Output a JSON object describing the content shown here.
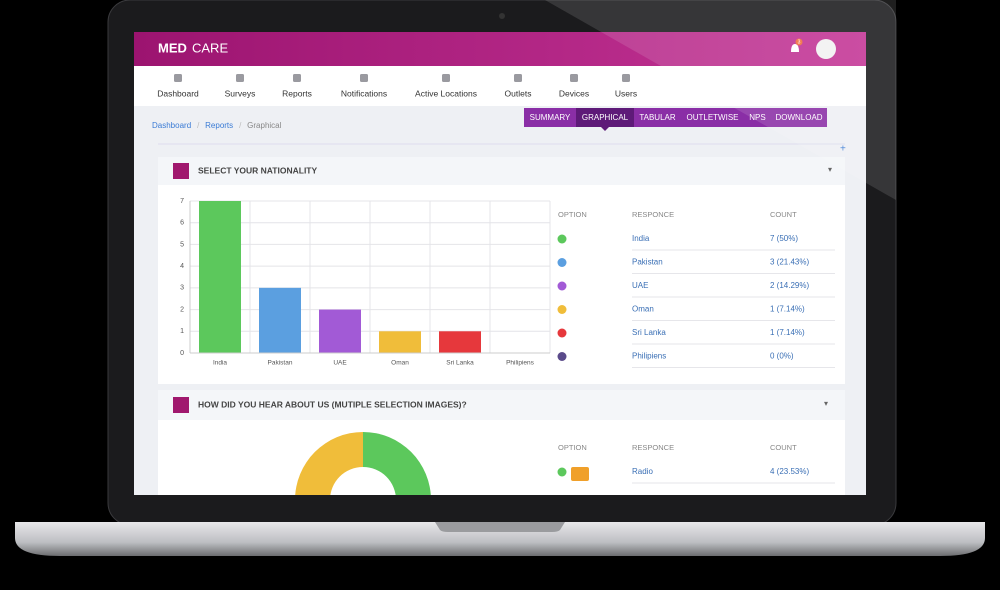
{
  "header": {
    "brand_bold": "MED",
    "brand": "CARE",
    "badge": "3"
  },
  "nav": [
    "Dashboard",
    "Surveys",
    "Reports",
    "Notifications",
    "Active Locations",
    "Outlets",
    "Devices",
    "Users"
  ],
  "breadcrumb": [
    "Dashboard",
    "Reports",
    "Graphical"
  ],
  "tabs": {
    "items": [
      "SUMMARY",
      "GRAPHICAL",
      "TABULAR",
      "OUTLETWISE",
      "NPS",
      "DOWNLOAD"
    ],
    "active": 1
  },
  "panels": [
    {
      "title": "SELECT YOUR NATIONALITY",
      "chart_data": {
        "type": "bar",
        "categories": [
          "India",
          "Pakistan",
          "UAE",
          "Oman",
          "Sri Lanka",
          "Philipiens"
        ],
        "values": [
          7,
          3,
          2,
          1,
          1,
          0
        ],
        "colors": [
          "#5cc85c",
          "#5b9fe0",
          "#a25ad6",
          "#f0bd3a",
          "#e6383c",
          "#5a4a8a"
        ],
        "ylim": [
          0,
          7
        ],
        "yticks": [
          0,
          1,
          2,
          3,
          4,
          5,
          6,
          7
        ],
        "grid": true
      },
      "table": {
        "headers": [
          "OPTION",
          "RESPONCE",
          "COUNT"
        ],
        "rows": [
          {
            "color": "#5cc85c",
            "name": "India",
            "count": "7 (50%)"
          },
          {
            "color": "#5b9fe0",
            "name": "Pakistan",
            "count": "3 (21.43%)"
          },
          {
            "color": "#a25ad6",
            "name": "UAE",
            "count": "2 (14.29%)"
          },
          {
            "color": "#f0bd3a",
            "name": "Oman",
            "count": "1 (7.14%)"
          },
          {
            "color": "#e6383c",
            "name": "Sri Lanka",
            "count": "1 (7.14%)"
          },
          {
            "color": "#5a4a8a",
            "name": "Philipiens",
            "count": "0 (0%)"
          }
        ]
      }
    },
    {
      "title": "HOW DID YOU HEAR ABOUT US (MUTIPLE SELECTION IMAGES)?",
      "table": {
        "headers": [
          "OPTION",
          "RESPONCE",
          "COUNT"
        ],
        "rows": [
          {
            "color": "#5cc85c",
            "name": "Radio",
            "count": "4 (23.53%)"
          }
        ]
      }
    }
  ]
}
